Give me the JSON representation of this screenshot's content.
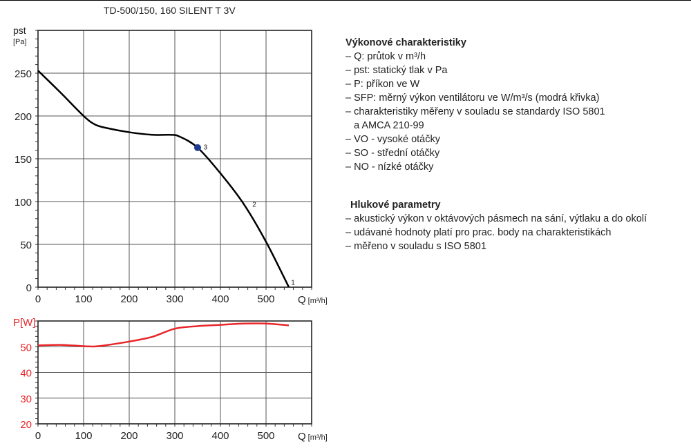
{
  "title": "TD-500/150, 160 SILENT T 3V",
  "description": {
    "performance_heading": "Výkonové charakteristiky",
    "performance_items": [
      "– Q: průtok v m³/h",
      "– pst: statický tlak v Pa",
      "– P: příkon ve W",
      "– SFP: měrný výkon ventilátoru ve W/m³/s (modrá křivka)",
      "– charakteristiky měřeny v souladu se standardy ISO 5801",
      "   a AMCA 210-99",
      "– VO - vysoké otáčky",
      "– SO - střední otáčky",
      "– NO - nízké otáčky"
    ],
    "noise_heading": "Hlukové parametry",
    "noise_items": [
      "– akustický výkon v oktávových pásmech na sání, výtlaku a do okolí",
      "– udávané hodnoty platí pro prac. body na charakteristikách",
      "– měřeno v souladu s ISO 5801"
    ]
  },
  "chart_data": [
    {
      "type": "line",
      "ylabel": "pst",
      "yunit": "[Pa]",
      "xlabel": "Q",
      "xunit": "[m³/h]",
      "xlim": [
        0,
        600
      ],
      "ylim": [
        0,
        300
      ],
      "xticks": [
        0,
        100,
        200,
        300,
        400,
        500
      ],
      "yticks": [
        0,
        50,
        100,
        150,
        200,
        250
      ],
      "grid": true,
      "line_color": "#000000",
      "series": [
        {
          "x": [
            0,
            50,
            100,
            125,
            150,
            200,
            250,
            290,
            310,
            350,
            400,
            450,
            500,
            550
          ],
          "y": [
            253,
            227,
            200,
            190,
            186,
            181,
            178,
            178,
            176,
            163,
            133,
            98,
            53,
            0
          ]
        }
      ],
      "annotations": [
        {
          "text": "1",
          "x": 555,
          "y": 3
        },
        {
          "text": "2",
          "x": 470,
          "y": 94
        },
        {
          "text": "3",
          "x": 363,
          "y": 161
        }
      ],
      "marker": {
        "x": 350,
        "y": 163,
        "color": "#1f3a8f"
      }
    },
    {
      "type": "line",
      "ylabel": "P[W]",
      "xlabel": "Q",
      "xunit": "[m³/h]",
      "xlim": [
        0,
        600
      ],
      "ylim": [
        20,
        60
      ],
      "xticks": [
        0,
        100,
        200,
        300,
        400,
        500
      ],
      "yticks": [
        20,
        30,
        40,
        50
      ],
      "grid": true,
      "line_color": "#e8262a",
      "label_color": "#e8262a",
      "series": [
        {
          "x": [
            0,
            50,
            100,
            125,
            150,
            200,
            250,
            300,
            350,
            400,
            450,
            500,
            550
          ],
          "y": [
            50.5,
            50.7,
            50.2,
            50.1,
            50.6,
            52,
            53.8,
            57,
            58,
            58.5,
            59,
            59,
            58.3
          ]
        }
      ]
    }
  ]
}
